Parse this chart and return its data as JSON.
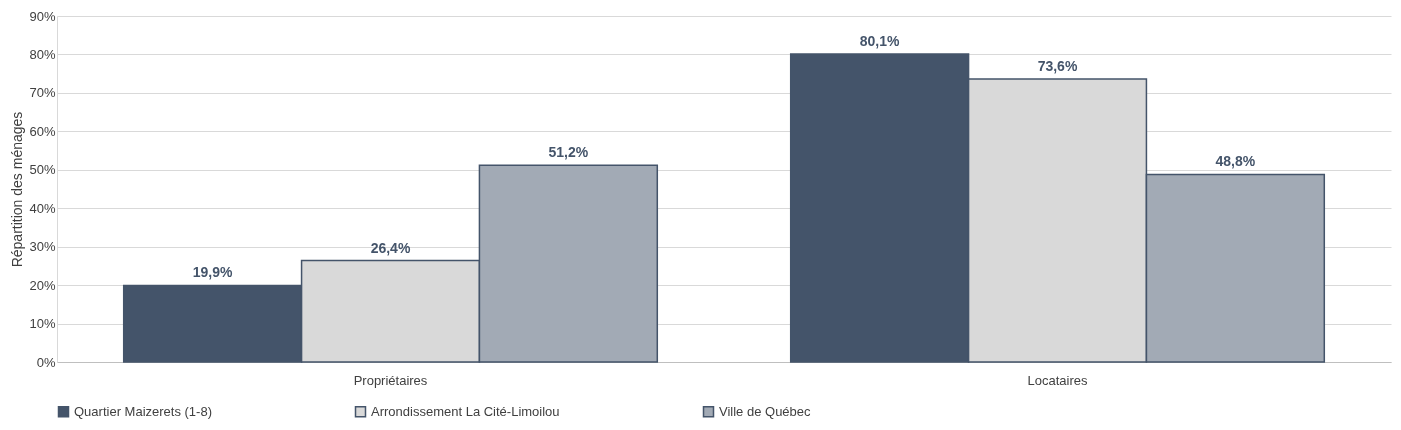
{
  "chart_data": {
    "type": "bar",
    "ylabel": "Répartition des ménages",
    "categories": [
      "Propriétaires",
      "Locataires"
    ],
    "series": [
      {
        "name": "Quartier Maizerets (1-8)",
        "color": "#44546a",
        "values": [
          19.9,
          80.1
        ],
        "value_labels": [
          "19,9%",
          "80,1%"
        ]
      },
      {
        "name": "Arrondissement La Cité-Limoilou",
        "color": "#d9d9d9",
        "values": [
          26.4,
          73.6
        ],
        "value_labels": [
          "26,4%",
          "73,6%"
        ]
      },
      {
        "name": "Ville de Québec",
        "color": "#a2aab5",
        "values": [
          51.2,
          48.8
        ],
        "value_labels": [
          "51,2%",
          "48,8%"
        ]
      }
    ],
    "ylim": [
      0,
      90
    ],
    "yticks": [
      {
        "value": 0,
        "label": "0%"
      },
      {
        "value": 10,
        "label": "10%"
      },
      {
        "value": 20,
        "label": "20%"
      },
      {
        "value": 30,
        "label": "30%"
      },
      {
        "value": 40,
        "label": "40%"
      },
      {
        "value": 50,
        "label": "50%"
      },
      {
        "value": 60,
        "label": "60%"
      },
      {
        "value": 70,
        "label": "70%"
      },
      {
        "value": 80,
        "label": "80%"
      },
      {
        "value": 90,
        "label": "90%"
      }
    ],
    "grid": "y",
    "legend": "bottom"
  }
}
